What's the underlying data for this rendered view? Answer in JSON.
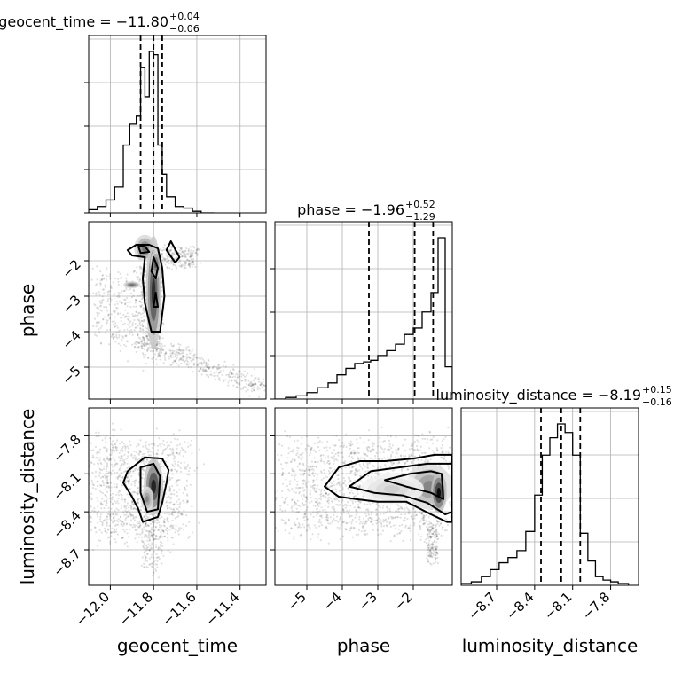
{
  "chart_data": {
    "type": "corner",
    "parameters": [
      "geocent_time",
      "phase",
      "luminosity_distance"
    ],
    "titles": [
      {
        "param": "geocent_time",
        "text": "geocent_time = −11.80",
        "plus": "+0.04",
        "minus": "−0.06"
      },
      {
        "param": "phase",
        "text": "phase = −1.96",
        "plus": "+0.52",
        "minus": "−1.29"
      },
      {
        "param": "luminosity_distance",
        "text": "luminosity_distance = −8.19",
        "plus": "+0.15",
        "minus": "−0.16"
      }
    ],
    "axes": {
      "geocent_time": {
        "range": [
          -12.1,
          -11.28
        ],
        "ticks": [
          -12.0,
          -11.8,
          -11.6,
          -11.4
        ],
        "tick_labels": [
          "−12.0",
          "−11.8",
          "−11.6",
          "−11.4"
        ],
        "label": "geocent_time"
      },
      "phase": {
        "range": [
          -5.9,
          -0.9
        ],
        "ticks": [
          -5,
          -4,
          -3,
          -2
        ],
        "tick_labels": [
          "−5",
          "−4",
          "−3",
          "−2"
        ],
        "label": "phase"
      },
      "luminosity_distance": {
        "range": [
          -8.98,
          -7.58
        ],
        "ticks": [
          -8.7,
          -8.4,
          -8.1,
          -7.8
        ],
        "tick_labels": [
          "−8.7",
          "−8.4",
          "−8.1",
          "−7.8"
        ],
        "label": "luminosity_distance"
      }
    },
    "quantiles": {
      "geocent_time": [
        -11.86,
        -11.8,
        -11.76
      ],
      "phase": [
        -3.25,
        -1.96,
        -1.44
      ],
      "luminosity_distance": [
        -8.35,
        -8.19,
        -8.04
      ]
    },
    "histograms": {
      "geocent_time": {
        "edges": [
          -12.1,
          -12.06,
          -12.02,
          -11.98,
          -11.94,
          -11.91,
          -11.88,
          -11.86,
          -11.84,
          -11.82,
          -11.8,
          -11.78,
          -11.76,
          -11.74,
          -11.7,
          -11.66,
          -11.62,
          -11.58,
          -11.52
        ],
        "counts": [
          0.02,
          0.04,
          0.08,
          0.16,
          0.42,
          0.55,
          0.6,
          0.9,
          0.72,
          1.0,
          0.98,
          0.42,
          0.24,
          0.1,
          0.04,
          0.03,
          0.01,
          0.0
        ]
      },
      "phase": {
        "edges": [
          -5.9,
          -5.6,
          -5.3,
          -5.0,
          -4.7,
          -4.4,
          -4.15,
          -3.9,
          -3.65,
          -3.4,
          -3.2,
          -3.0,
          -2.75,
          -2.5,
          -2.25,
          -2.0,
          -1.75,
          -1.5,
          -1.3,
          -1.1,
          -0.9
        ],
        "counts": [
          0.0,
          0.01,
          0.02,
          0.04,
          0.07,
          0.1,
          0.15,
          0.19,
          0.22,
          0.23,
          0.24,
          0.27,
          0.3,
          0.34,
          0.4,
          0.44,
          0.54,
          0.66,
          1.0,
          0.2
        ]
      },
      "luminosity_distance": {
        "edges": [
          -8.98,
          -8.9,
          -8.82,
          -8.75,
          -8.68,
          -8.61,
          -8.54,
          -8.47,
          -8.4,
          -8.34,
          -8.28,
          -8.22,
          -8.16,
          -8.1,
          -8.04,
          -7.98,
          -7.92,
          -7.86,
          -7.8,
          -7.74,
          -7.66
        ],
        "counts": [
          0.01,
          0.02,
          0.05,
          0.09,
          0.13,
          0.16,
          0.2,
          0.31,
          0.52,
          0.75,
          0.85,
          0.93,
          0.88,
          0.75,
          0.3,
          0.14,
          0.05,
          0.03,
          0.02,
          0.01
        ]
      }
    },
    "panels_2d": [
      {
        "x": "geocent_time",
        "y": "phase",
        "clouds": [
          {
            "x": [
              -12.08,
              -11.86
            ],
            "y": [
              -4.3,
              -2.3
            ],
            "n": 300
          },
          {
            "x": [
              -11.86,
              -11.76
            ],
            "y": [
              -4.6,
              -1.9
            ],
            "n": 450
          },
          {
            "x": [
              -11.86,
              -11.3
            ],
            "y": [
              -4.3,
              -5.6
            ],
            "n": 400
          },
          {
            "x": [
              -11.78,
              -11.6
            ],
            "y": [
              -1.6,
              -2.2
            ],
            "n": 200
          }
        ],
        "density_peaks": [
          {
            "x": -11.84,
            "y": -1.65,
            "w": 0.05,
            "h": 0.38,
            "level": 0.6
          },
          {
            "x": -11.8,
            "y": -2.9,
            "w": 0.035,
            "h": 1.6,
            "level": 0.85
          },
          {
            "x": -11.79,
            "y": -2.1,
            "w": 0.025,
            "h": 0.4,
            "level": 0.7
          },
          {
            "x": -11.9,
            "y": -2.68,
            "w": 0.04,
            "h": 0.1,
            "level": 0.6
          }
        ],
        "contours": [
          [
            [
              -11.88,
              -1.55
            ],
            [
              -11.82,
              -1.55
            ],
            [
              -11.78,
              -1.65
            ],
            [
              -11.76,
              -2.2
            ],
            [
              -11.75,
              -3.0
            ],
            [
              -11.77,
              -4.0
            ],
            [
              -11.81,
              -4.0
            ],
            [
              -11.84,
              -3.2
            ],
            [
              -11.85,
              -2.5
            ],
            [
              -11.84,
              -1.9
            ],
            [
              -11.9,
              -1.85
            ],
            [
              -11.92,
              -1.7
            ]
          ],
          [
            [
              -11.87,
              -1.6
            ],
            [
              -11.84,
              -1.6
            ],
            [
              -11.82,
              -1.75
            ],
            [
              -11.86,
              -1.78
            ]
          ],
          [
            [
              -11.8,
              -1.9
            ],
            [
              -11.78,
              -2.2
            ],
            [
              -11.79,
              -2.5
            ],
            [
              -11.81,
              -2.3
            ]
          ],
          [
            [
              -11.79,
              -2.9
            ],
            [
              -11.78,
              -3.3
            ],
            [
              -11.8,
              -3.3
            ]
          ],
          [
            [
              -11.72,
              -1.45
            ],
            [
              -11.68,
              -1.9
            ],
            [
              -11.7,
              -2.05
            ],
            [
              -11.74,
              -1.7
            ]
          ]
        ]
      },
      {
        "x": "geocent_time",
        "y": "luminosity_distance",
        "clouds": [
          {
            "x": [
              -12.08,
              -11.66
            ],
            "y": [
              -8.6,
              -7.85
            ],
            "n": 1100
          },
          {
            "x": [
              -11.85,
              -11.76
            ],
            "y": [
              -8.85,
              -8.45
            ],
            "n": 150
          }
        ],
        "density_peaks": [
          {
            "x": -11.8,
            "y": -8.2,
            "w": 0.045,
            "h": 0.22,
            "level": 0.9
          },
          {
            "x": -11.83,
            "y": -8.3,
            "w": 0.03,
            "h": 0.1,
            "level": 0.5
          }
        ],
        "contours": [
          [
            [
              -11.92,
              -8.08
            ],
            [
              -11.84,
              -7.97
            ],
            [
              -11.76,
              -7.98
            ],
            [
              -11.73,
              -8.07
            ],
            [
              -11.74,
              -8.17
            ],
            [
              -11.76,
              -8.33
            ],
            [
              -11.78,
              -8.44
            ],
            [
              -11.85,
              -8.48
            ],
            [
              -11.87,
              -8.38
            ],
            [
              -11.9,
              -8.28
            ],
            [
              -11.94,
              -8.17
            ]
          ],
          [
            [
              -11.86,
              -8.05
            ],
            [
              -11.8,
              -8.02
            ],
            [
              -11.77,
              -8.12
            ],
            [
              -11.78,
              -8.38
            ],
            [
              -11.83,
              -8.4
            ],
            [
              -11.86,
              -8.25
            ]
          ]
        ]
      },
      {
        "x": "phase",
        "y": "luminosity_distance",
        "clouds": [
          {
            "x": [
              -5.6,
              -0.9
            ],
            "y": [
              -8.55,
              -7.85
            ],
            "n": 1500
          },
          {
            "x": [
              -1.6,
              -1.3
            ],
            "y": [
              -8.8,
              -8.5
            ],
            "n": 150
          }
        ],
        "density_peaks": [
          {
            "x": -1.55,
            "y": -8.2,
            "w": 0.65,
            "h": 0.18,
            "level": 0.5
          },
          {
            "x": -1.28,
            "y": -8.25,
            "w": 0.22,
            "h": 0.16,
            "level": 1.0
          },
          {
            "x": -2.6,
            "y": -8.22,
            "w": 0.9,
            "h": 0.12,
            "level": 0.2
          }
        ],
        "contours": [
          [
            [
              -4.5,
              -8.2
            ],
            [
              -4.1,
              -8.05
            ],
            [
              -3.5,
              -8.0
            ],
            [
              -2.8,
              -8.0
            ],
            [
              -2.0,
              -7.98
            ],
            [
              -1.4,
              -7.95
            ],
            [
              -0.9,
              -7.95
            ],
            [
              -0.9,
              -8.48
            ],
            [
              -1.05,
              -8.48
            ],
            [
              -1.5,
              -8.42
            ],
            [
              -2.2,
              -8.32
            ],
            [
              -3.0,
              -8.32
            ],
            [
              -3.6,
              -8.3
            ],
            [
              -4.1,
              -8.28
            ]
          ],
          [
            [
              -3.8,
              -8.2
            ],
            [
              -3.2,
              -8.08
            ],
            [
              -2.4,
              -8.05
            ],
            [
              -1.6,
              -8.02
            ],
            [
              -0.9,
              -8.02
            ],
            [
              -0.9,
              -8.4
            ],
            [
              -1.1,
              -8.42
            ],
            [
              -1.6,
              -8.33
            ],
            [
              -2.3,
              -8.27
            ],
            [
              -3.1,
              -8.25
            ]
          ],
          [
            [
              -2.8,
              -8.15
            ],
            [
              -2.1,
              -8.1
            ],
            [
              -1.5,
              -8.08
            ],
            [
              -1.2,
              -8.1
            ],
            [
              -1.15,
              -8.3
            ],
            [
              -1.5,
              -8.25
            ],
            [
              -2.2,
              -8.2
            ]
          ]
        ]
      }
    ]
  }
}
